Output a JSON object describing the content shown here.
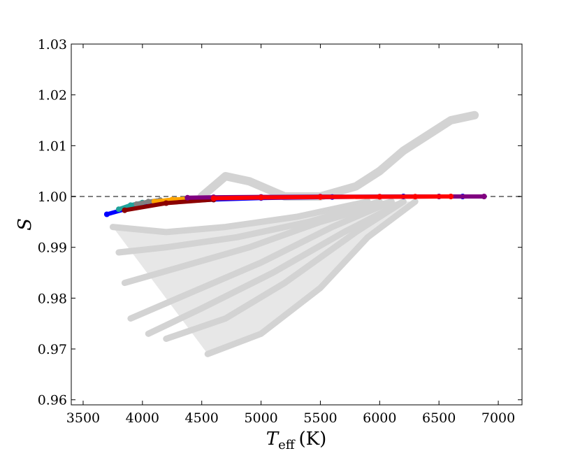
{
  "chart_data": {
    "type": "scatter",
    "title": "",
    "xlabel": {
      "symbol": "T",
      "subscript": "eff",
      "unit": "(K)"
    },
    "ylabel": "S",
    "xlim": [
      3400,
      7200
    ],
    "ylim": [
      0.959,
      1.03
    ],
    "x_ticks": [
      3500,
      4000,
      4500,
      5000,
      5500,
      6000,
      6500,
      7000
    ],
    "x_tick_labels": [
      "3500",
      "4000",
      "4500",
      "5000",
      "5500",
      "6000",
      "6500",
      "7000"
    ],
    "y_ticks": [
      0.96,
      0.97,
      0.98,
      0.99,
      1.0,
      1.01,
      1.02,
      1.03
    ],
    "y_tick_labels": [
      "0.96",
      "0.97",
      "0.98",
      "0.99",
      "1.00",
      "1.01",
      "1.02",
      "1.03"
    ],
    "grid": false,
    "legend": "none",
    "reference_line": {
      "y": 1.0,
      "style": "dashed",
      "color": "#808080"
    },
    "background_cloud": {
      "color": "#d3d3d3",
      "description_values": {
        "upper_branch": {
          "x": [
            4500,
            4700,
            4900,
            5200,
            5500,
            5800,
            6000,
            6200,
            6400,
            6600,
            6800
          ],
          "y": [
            1.0,
            1.004,
            1.003,
            1.0,
            1.0,
            1.002,
            1.005,
            1.009,
            1.012,
            1.015,
            1.016
          ]
        },
        "lower_tracks": [
          {
            "x": [
              3750,
              4200,
              4700,
              5300,
              5900
            ],
            "y": [
              0.994,
              0.993,
              0.994,
              0.996,
              0.999
            ]
          },
          {
            "x": [
              3800,
              4200,
              4800,
              5400,
              6000
            ],
            "y": [
              0.989,
              0.99,
              0.992,
              0.995,
              0.999
            ]
          },
          {
            "x": [
              3850,
              4300,
              4900,
              5500,
              6100
            ],
            "y": [
              0.983,
              0.986,
              0.99,
              0.995,
              0.999
            ]
          },
          {
            "x": [
              3900,
              4400,
              5000,
              5600,
              6100
            ],
            "y": [
              0.976,
              0.981,
              0.987,
              0.994,
              0.999
            ]
          },
          {
            "x": [
              4050,
              4500,
              5100,
              5700,
              6200
            ],
            "y": [
              0.973,
              0.978,
              0.985,
              0.993,
              0.999
            ]
          },
          {
            "x": [
              4200,
              4700,
              5200,
              5800,
              6200
            ],
            "y": [
              0.972,
              0.976,
              0.983,
              0.993,
              0.999
            ]
          },
          {
            "x": [
              4550,
              5000,
              5500,
              5900,
              6300
            ],
            "y": [
              0.969,
              0.973,
              0.982,
              0.992,
              0.999
            ]
          }
        ]
      }
    },
    "series": [
      {
        "color": "#0000ff",
        "x": [
          3700,
          3900,
          4200,
          4600,
          5000,
          5600,
          6200,
          6700
        ],
        "y": [
          0.9965,
          0.9978,
          0.9988,
          0.9994,
          0.9997,
          0.9999,
          1.0,
          1.0
        ]
      },
      {
        "color": "#1fa39a",
        "x": [
          3800,
          3900,
          4000
        ],
        "y": [
          0.9975,
          0.9983,
          0.9988
        ]
      },
      {
        "color": "#808080",
        "x": [
          3950,
          4050,
          4150
        ],
        "y": [
          0.9985,
          0.999,
          0.9993
        ]
      },
      {
        "color": "#ffa500",
        "x": [
          4100,
          4250,
          4400
        ],
        "y": [
          0.999,
          0.9994,
          0.9996
        ]
      },
      {
        "color": "#8b0000",
        "x": [
          3850,
          4200,
          4600
        ],
        "y": [
          0.9973,
          0.9987,
          0.9994
        ]
      },
      {
        "color": "#800080",
        "x": [
          4380,
          4600,
          5000,
          5500,
          6000,
          6500,
          6880
        ],
        "y": [
          0.99975,
          0.99985,
          0.99992,
          0.99996,
          0.99998,
          1.0,
          1.0
        ]
      },
      {
        "color": "#ff0000",
        "x": [
          4600,
          5000,
          5500,
          6000,
          6300,
          6600
        ],
        "y": [
          0.99965,
          0.9998,
          0.9999,
          0.99995,
          0.99998,
          1.0
        ]
      }
    ]
  }
}
